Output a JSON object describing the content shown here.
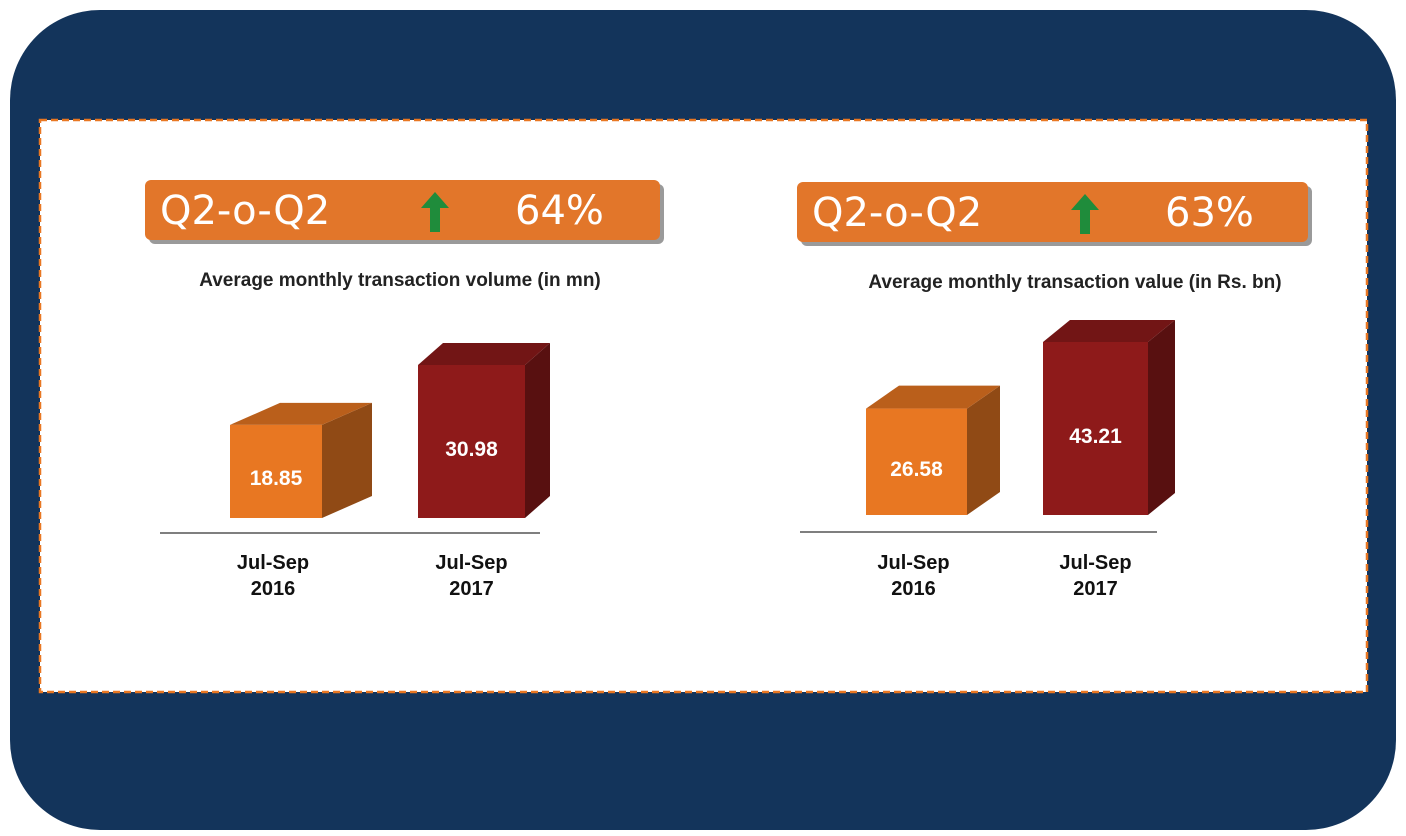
{
  "chart_data": [
    {
      "type": "bar3d",
      "badge": {
        "label": "Q2-o-Q2",
        "change": "64%"
      },
      "title": "Average monthly transaction volume (in mn)",
      "categories": [
        "Jul-Sep 2016",
        "Jul-Sep 2017"
      ],
      "values": [
        18.85,
        30.98
      ],
      "colors": [
        "#e87722",
        "#8e1a1a"
      ]
    },
    {
      "type": "bar3d",
      "badge": {
        "label": "Q2-o-Q2",
        "change": "63%"
      },
      "title": "Average monthly transaction value (in Rs. bn)",
      "categories": [
        "Jul-Sep 2016",
        "Jul-Sep 2017"
      ],
      "values": [
        26.58,
        43.21
      ],
      "colors": [
        "#e87722",
        "#8e1a1a"
      ]
    }
  ]
}
